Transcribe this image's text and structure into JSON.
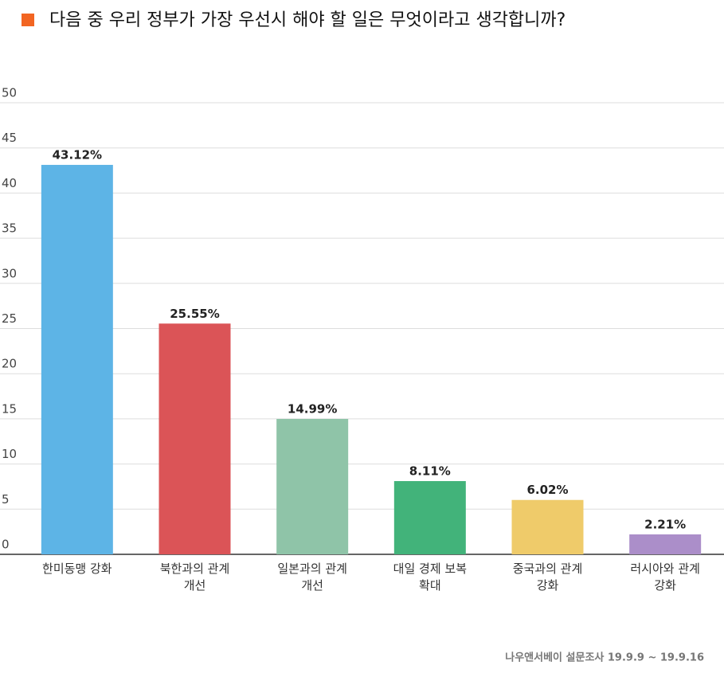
{
  "chart_data": {
    "type": "bar",
    "title": "다음 중 우리 정부가 가장 우선시 해야 할 일은 무엇이라고 생각합니까?",
    "categories": [
      "한미동맹 강화",
      "북한과의 관계\n개선",
      "일본과의 관계\n개선",
      "대일 경제 보복\n확대",
      "중국과의 관계\n강화",
      "러시아와 관계\n강화"
    ],
    "values": [
      43.12,
      25.55,
      14.99,
      8.11,
      6.02,
      2.21
    ],
    "value_labels": [
      "43.12%",
      "25.55%",
      "14.99%",
      "8.11%",
      "6.02%",
      "2.21%"
    ],
    "colors": [
      "#5db4e6",
      "#db5457",
      "#8fc4a8",
      "#42b37a",
      "#efcb6a",
      "#ab8ec9"
    ],
    "title_marker_color": "#f26522",
    "ylim": [
      0,
      50
    ],
    "yticks": [
      0,
      5,
      10,
      15,
      20,
      25,
      30,
      35,
      40,
      45,
      50
    ],
    "grid": true,
    "source": "나우앤서베이 설문조사 19.9.9 ~ 19.9.16"
  }
}
